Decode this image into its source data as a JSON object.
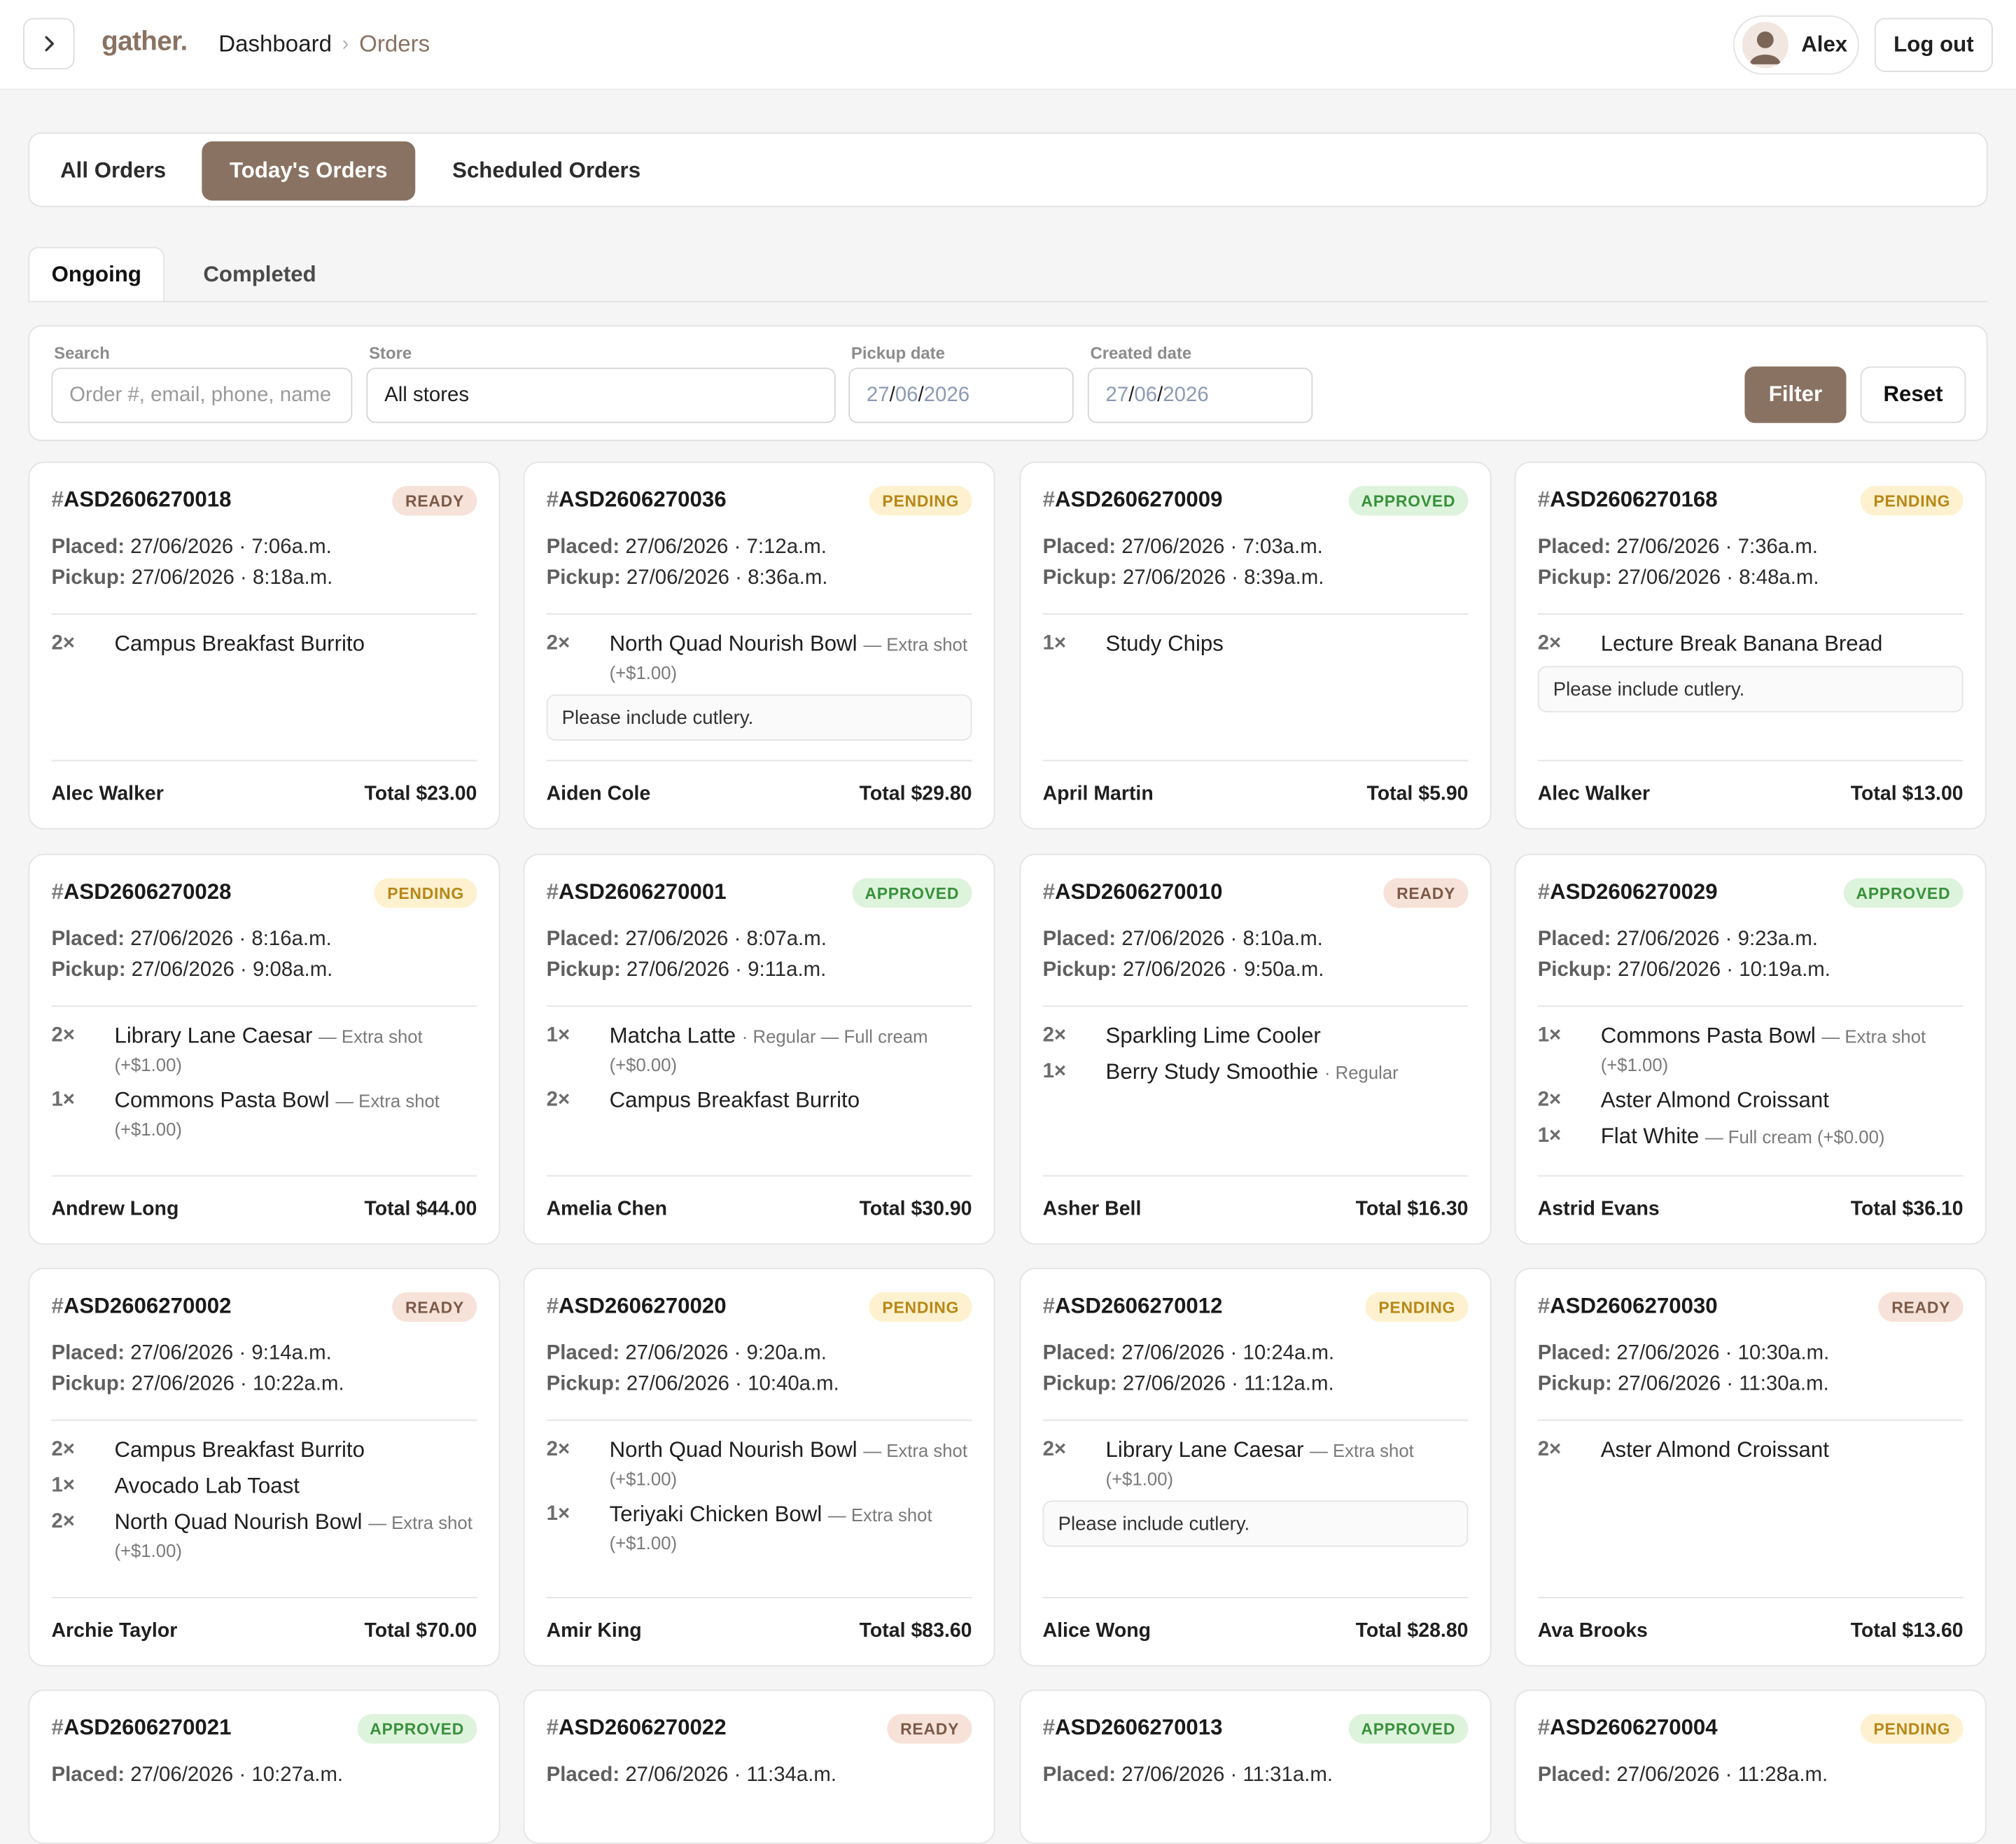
{
  "header": {
    "logo": "gather.",
    "breadcrumb": [
      "Dashboard",
      "Orders"
    ],
    "user": "Alex",
    "logout": "Log out"
  },
  "tabs": [
    "All Orders",
    "Today's Orders",
    "Scheduled Orders"
  ],
  "active_tab": "Today's Orders",
  "subtabs": [
    "Ongoing",
    "Completed"
  ],
  "active_subtab": "Ongoing",
  "filters": {
    "search_label": "Search",
    "search_placeholder": "Order #, email, phone, name",
    "store_label": "Store",
    "store_value": "All stores",
    "pickup_label": "Pickup date",
    "pickup_value": [
      "27",
      "06",
      "2026"
    ],
    "created_label": "Created date",
    "created_value": [
      "27",
      "06",
      "2026"
    ],
    "filter_button": "Filter",
    "reset_button": "Reset"
  },
  "labels": {
    "placed": "Placed:",
    "pickup": "Pickup:",
    "total_prefix": "Total"
  },
  "orders": [
    {
      "id": "ASD2606270018",
      "status": "READY",
      "placed": "27/06/2026 · 7:06a.m.",
      "pickup": "27/06/2026 · 8:18a.m.",
      "items": [
        {
          "qty": "2×",
          "name": "Campus Breakfast Burrito",
          "mod": ""
        }
      ],
      "note": "",
      "customer": "Alec Walker",
      "total": "$23.00"
    },
    {
      "id": "ASD2606270036",
      "status": "PENDING",
      "placed": "27/06/2026 · 7:12a.m.",
      "pickup": "27/06/2026 · 8:36a.m.",
      "items": [
        {
          "qty": "2×",
          "name": "North Quad Nourish Bowl",
          "mod": "— Extra shot (+$1.00)"
        }
      ],
      "note": "Please include cutlery.",
      "customer": "Aiden Cole",
      "total": "$29.80"
    },
    {
      "id": "ASD2606270009",
      "status": "APPROVED",
      "placed": "27/06/2026 · 7:03a.m.",
      "pickup": "27/06/2026 · 8:39a.m.",
      "items": [
        {
          "qty": "1×",
          "name": "Study Chips",
          "mod": ""
        }
      ],
      "note": "",
      "customer": "April Martin",
      "total": "$5.90"
    },
    {
      "id": "ASD2606270168",
      "status": "PENDING",
      "placed": "27/06/2026 · 7:36a.m.",
      "pickup": "27/06/2026 · 8:48a.m.",
      "items": [
        {
          "qty": "2×",
          "name": "Lecture Break Banana Bread",
          "mod": ""
        }
      ],
      "note": "Please include cutlery.",
      "customer": "Alec Walker",
      "total": "$13.00"
    },
    {
      "id": "ASD2606270028",
      "status": "PENDING",
      "placed": "27/06/2026 · 8:16a.m.",
      "pickup": "27/06/2026 · 9:08a.m.",
      "items": [
        {
          "qty": "2×",
          "name": "Library Lane Caesar",
          "mod": "— Extra shot (+$1.00)"
        },
        {
          "qty": "1×",
          "name": "Commons Pasta Bowl",
          "mod": "— Extra shot (+$1.00)"
        }
      ],
      "note": "",
      "customer": "Andrew Long",
      "total": "$44.00"
    },
    {
      "id": "ASD2606270001",
      "status": "APPROVED",
      "placed": "27/06/2026 · 8:07a.m.",
      "pickup": "27/06/2026 · 9:11a.m.",
      "items": [
        {
          "qty": "1×",
          "name": "Matcha Latte",
          "mod": "· Regular — Full cream (+$0.00)"
        },
        {
          "qty": "2×",
          "name": "Campus Breakfast Burrito",
          "mod": ""
        }
      ],
      "note": "",
      "customer": "Amelia Chen",
      "total": "$30.90"
    },
    {
      "id": "ASD2606270010",
      "status": "READY",
      "placed": "27/06/2026 · 8:10a.m.",
      "pickup": "27/06/2026 · 9:50a.m.",
      "items": [
        {
          "qty": "2×",
          "name": "Sparkling Lime Cooler",
          "mod": ""
        },
        {
          "qty": "1×",
          "name": "Berry Study Smoothie",
          "mod": "· Regular"
        }
      ],
      "note": "",
      "customer": "Asher Bell",
      "total": "$16.30"
    },
    {
      "id": "ASD2606270029",
      "status": "APPROVED",
      "placed": "27/06/2026 · 9:23a.m.",
      "pickup": "27/06/2026 · 10:19a.m.",
      "items": [
        {
          "qty": "1×",
          "name": "Commons Pasta Bowl",
          "mod": "— Extra shot (+$1.00)"
        },
        {
          "qty": "2×",
          "name": "Aster Almond Croissant",
          "mod": ""
        },
        {
          "qty": "1×",
          "name": "Flat White",
          "mod": "— Full cream (+$0.00)"
        }
      ],
      "note": "",
      "customer": "Astrid Evans",
      "total": "$36.10"
    },
    {
      "id": "ASD2606270002",
      "status": "READY",
      "placed": "27/06/2026 · 9:14a.m.",
      "pickup": "27/06/2026 · 10:22a.m.",
      "items": [
        {
          "qty": "2×",
          "name": "Campus Breakfast Burrito",
          "mod": ""
        },
        {
          "qty": "1×",
          "name": "Avocado Lab Toast",
          "mod": ""
        },
        {
          "qty": "2×",
          "name": "North Quad Nourish Bowl",
          "mod": "— Extra shot (+$1.00)"
        }
      ],
      "note": "",
      "customer": "Archie Taylor",
      "total": "$70.00"
    },
    {
      "id": "ASD2606270020",
      "status": "PENDING",
      "placed": "27/06/2026 · 9:20a.m.",
      "pickup": "27/06/2026 · 10:40a.m.",
      "items": [
        {
          "qty": "2×",
          "name": "North Quad Nourish Bowl",
          "mod": "— Extra shot (+$1.00)"
        },
        {
          "qty": "1×",
          "name": "Teriyaki Chicken Bowl",
          "mod": "— Extra shot (+$1.00)"
        }
      ],
      "note": "",
      "customer": "Amir King",
      "total": "$83.60"
    },
    {
      "id": "ASD2606270012",
      "status": "PENDING",
      "placed": "27/06/2026 · 10:24a.m.",
      "pickup": "27/06/2026 · 11:12a.m.",
      "items": [
        {
          "qty": "2×",
          "name": "Library Lane Caesar",
          "mod": "— Extra shot (+$1.00)"
        }
      ],
      "note": "Please include cutlery.",
      "customer": "Alice Wong",
      "total": "$28.80"
    },
    {
      "id": "ASD2606270030",
      "status": "READY",
      "placed": "27/06/2026 · 10:30a.m.",
      "pickup": "27/06/2026 · 11:30a.m.",
      "items": [
        {
          "qty": "2×",
          "name": "Aster Almond Croissant",
          "mod": ""
        }
      ],
      "note": "",
      "customer": "Ava Brooks",
      "total": "$13.60"
    },
    {
      "id": "ASD2606270021",
      "status": "APPROVED",
      "placed": "27/06/2026 · 10:27a.m.",
      "pickup": "",
      "items": [],
      "note": "",
      "customer": "",
      "total": ""
    },
    {
      "id": "ASD2606270022",
      "status": "READY",
      "placed": "27/06/2026 · 11:34a.m.",
      "pickup": "",
      "items": [],
      "note": "",
      "customer": "",
      "total": ""
    },
    {
      "id": "ASD2606270013",
      "status": "APPROVED",
      "placed": "27/06/2026 · 11:31a.m.",
      "pickup": "",
      "items": [],
      "note": "",
      "customer": "",
      "total": ""
    },
    {
      "id": "ASD2606270004",
      "status": "PENDING",
      "placed": "27/06/2026 · 11:28a.m.",
      "pickup": "",
      "items": [],
      "note": "",
      "customer": "",
      "total": ""
    }
  ],
  "colors": {
    "accent": "#8a7262",
    "ready_bg": "#f6e2d8",
    "pending_bg": "#fdf1cf",
    "approved_bg": "#def3dc"
  }
}
